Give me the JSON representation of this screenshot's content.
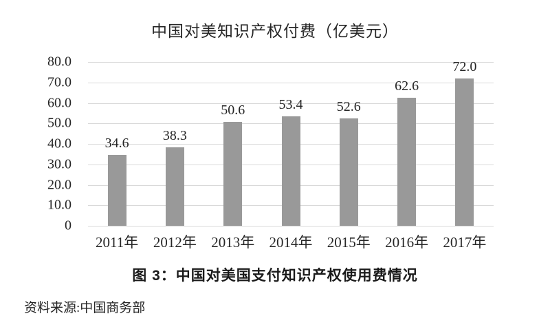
{
  "page": {
    "title": "中国对美知识产权付费（亿美元）",
    "caption": "图 3：中国对美国支付知识产权使用费情况",
    "source": "资料来源:中国商务部"
  },
  "chart_data": {
    "type": "bar",
    "title": "中国对美知识产权付费（亿美元）",
    "categories": [
      "2011年",
      "2012年",
      "2013年",
      "2014年",
      "2015年",
      "2016年",
      "2017年"
    ],
    "values": [
      34.6,
      38.3,
      50.6,
      53.4,
      52.6,
      62.6,
      72.0
    ],
    "data_labels": [
      "34.6",
      "38.3",
      "50.6",
      "53.4",
      "52.6",
      "62.6",
      "72.0"
    ],
    "xlabel": "",
    "ylabel": "",
    "ylim": [
      0,
      80
    ],
    "yticks": [
      0,
      10,
      20,
      30,
      40,
      50,
      60,
      70,
      80
    ],
    "ytick_labels": [
      "0",
      "10.0",
      "20.0",
      "30.0",
      "40.0",
      "50.0",
      "60.0",
      "70.0",
      "80.0"
    ],
    "grid": "horizontal",
    "legend": "none",
    "bar_color": "#999999",
    "gridline_color": "#d9d9d9",
    "background_color": "#ffffff"
  }
}
